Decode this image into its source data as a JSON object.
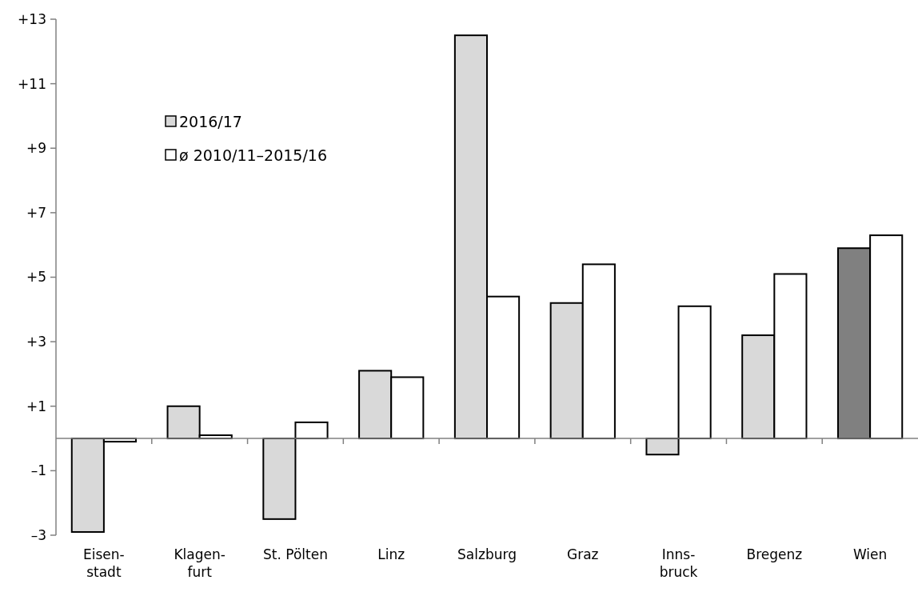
{
  "chart_data": {
    "type": "bar",
    "categories": [
      "Eisen-\nstadt",
      "Klagen-\nfurt",
      "St. Pölten",
      "Linz",
      "Salzburg",
      "Graz",
      "Inns-\nbruck",
      "Bregenz",
      "Wien"
    ],
    "series": [
      {
        "name": "2016/17",
        "color": "#d9d9d9",
        "colors": [
          "#d9d9d9",
          "#d9d9d9",
          "#d9d9d9",
          "#d9d9d9",
          "#d9d9d9",
          "#d9d9d9",
          "#d9d9d9",
          "#d9d9d9",
          "#808080"
        ],
        "values": [
          -2.9,
          1.0,
          -2.5,
          2.1,
          12.5,
          4.2,
          -0.5,
          3.2,
          5.9
        ]
      },
      {
        "name": "ø 2010/11–2015/16",
        "color": "#ffffff",
        "values": [
          -0.1,
          0.1,
          0.5,
          1.9,
          4.4,
          5.4,
          4.1,
          5.1,
          6.3
        ]
      }
    ],
    "ylim": [
      -3,
      13
    ],
    "yticks": [
      {
        "value": -3,
        "label": "–3"
      },
      {
        "value": -1,
        "label": "–1"
      },
      {
        "value": 1,
        "label": "+1"
      },
      {
        "value": 3,
        "label": "+3"
      },
      {
        "value": 5,
        "label": "+5"
      },
      {
        "value": 7,
        "label": "+7"
      },
      {
        "value": 9,
        "label": "+9"
      },
      {
        "value": 11,
        "label": "+11"
      },
      {
        "value": 13,
        "label": "+13"
      }
    ],
    "grid": false,
    "legend": "top left"
  }
}
